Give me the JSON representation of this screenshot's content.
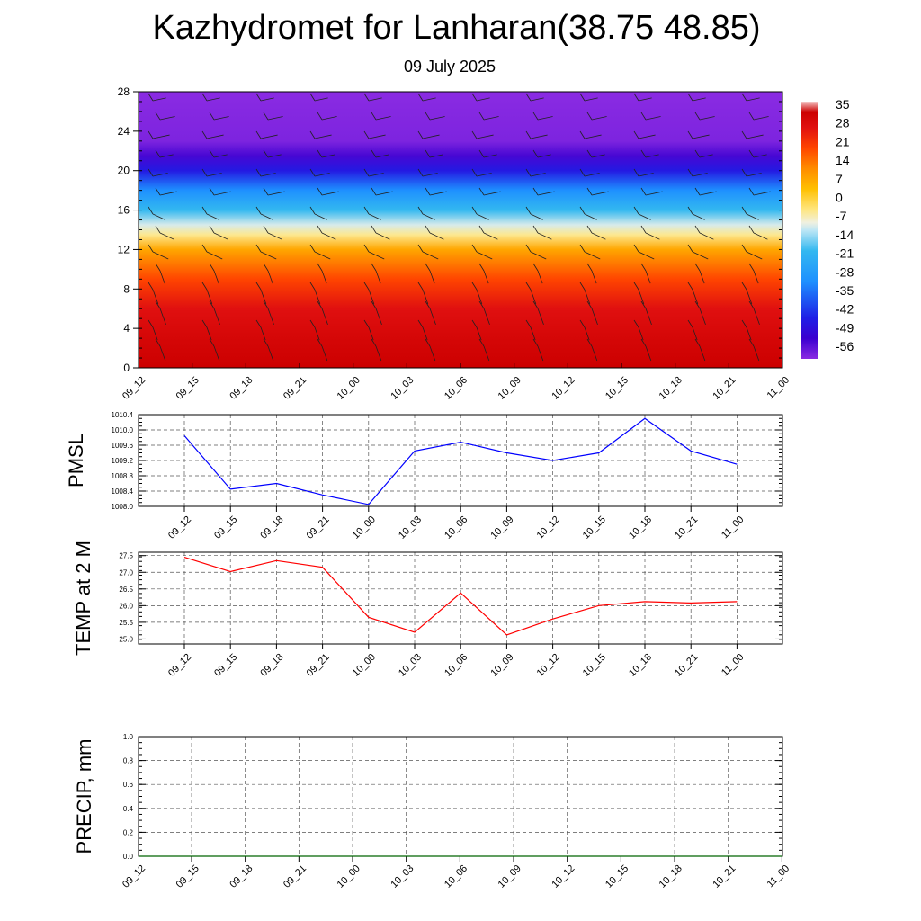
{
  "title": "Kazhydromet for Lanharan(38.75 48.85)",
  "subtitle": "09 July 2025",
  "chart_data": [
    {
      "type": "heatmap",
      "x_tick_labels": [
        "09_12",
        "09_15",
        "09_18",
        "09_21",
        "10_00",
        "10_03",
        "10_06",
        "10_09",
        "10_12",
        "10_15",
        "10_18",
        "10_21",
        "11_00"
      ],
      "y_tick_labels": [
        "0",
        "4",
        "8",
        "12",
        "16",
        "20",
        "24",
        "28"
      ],
      "ylim": [
        0,
        28
      ],
      "colorbar_labels": [
        "35",
        "28",
        "21",
        "14",
        "7",
        "0",
        "-7",
        "-14",
        "-21",
        "-28",
        "-35",
        "-42",
        "-49",
        "-56"
      ],
      "temperature_profile": {
        "levels": [
          0,
          3,
          6,
          9,
          12,
          13.5,
          14.5,
          16,
          18,
          20,
          21.5,
          23,
          28
        ],
        "values": [
          33,
          30,
          26,
          19,
          8,
          -7,
          -14,
          -25,
          -38,
          -52,
          -62,
          -70,
          -72
        ]
      },
      "colors": {
        "hot": "#cc0000",
        "orange": "#ff8c00",
        "yellow": "#ffe066",
        "cyan": "#33b8f0",
        "blue": "#1f1fe6",
        "violet": "#8a2be2"
      }
    },
    {
      "type": "line",
      "ylabel": "PMSL",
      "x": [
        "09_12",
        "09_15",
        "09_18",
        "09_21",
        "10_00",
        "10_03",
        "10_06",
        "10_09",
        "10_12",
        "10_15",
        "10_18",
        "10_21",
        "11_00"
      ],
      "y": [
        1009.85,
        1008.45,
        1008.6,
        1008.3,
        1008.05,
        1009.45,
        1009.68,
        1009.4,
        1009.2,
        1009.4,
        1010.3,
        1009.45,
        1009.1
      ],
      "ylim": [
        1008.0,
        1010.4
      ],
      "y_tick_labels": [
        "1010.4",
        "1010.0",
        "1009.6",
        "1009.2",
        "1008.8",
        "1008.4",
        "1008.0"
      ],
      "color": "#0000ff",
      "grid": true
    },
    {
      "type": "line",
      "ylabel": "TEMP at 2 M",
      "x": [
        "09_12",
        "09_15",
        "09_18",
        "09_21",
        "10_00",
        "10_03",
        "10_06",
        "10_09",
        "10_12",
        "10_15",
        "10_18",
        "10_21",
        "11_00"
      ],
      "y": [
        27.45,
        27.02,
        27.35,
        27.15,
        25.65,
        25.2,
        26.38,
        25.12,
        25.6,
        26.0,
        26.12,
        26.08,
        26.12
      ],
      "ylim": [
        24.85,
        27.6
      ],
      "y_tick_labels": [
        "27.5",
        "27.0",
        "26.5",
        "26.0",
        "25.5",
        "25.0"
      ],
      "color": "#ff0000",
      "grid": true
    },
    {
      "type": "line",
      "ylabel": "PRECIP, mm",
      "x": [
        "09_12",
        "09_15",
        "09_18",
        "09_21",
        "10_00",
        "10_03",
        "10_06",
        "10_09",
        "10_12",
        "10_15",
        "10_18",
        "10_21",
        "11_00"
      ],
      "y": [
        0,
        0,
        0,
        0,
        0,
        0,
        0,
        0,
        0,
        0,
        0,
        0,
        0
      ],
      "ylim": [
        0.0,
        1.0
      ],
      "y_tick_labels": [
        "1.0",
        "0.8",
        "0.6",
        "0.4",
        "0.2",
        "0.0"
      ],
      "color": "#006400",
      "grid": true
    }
  ]
}
